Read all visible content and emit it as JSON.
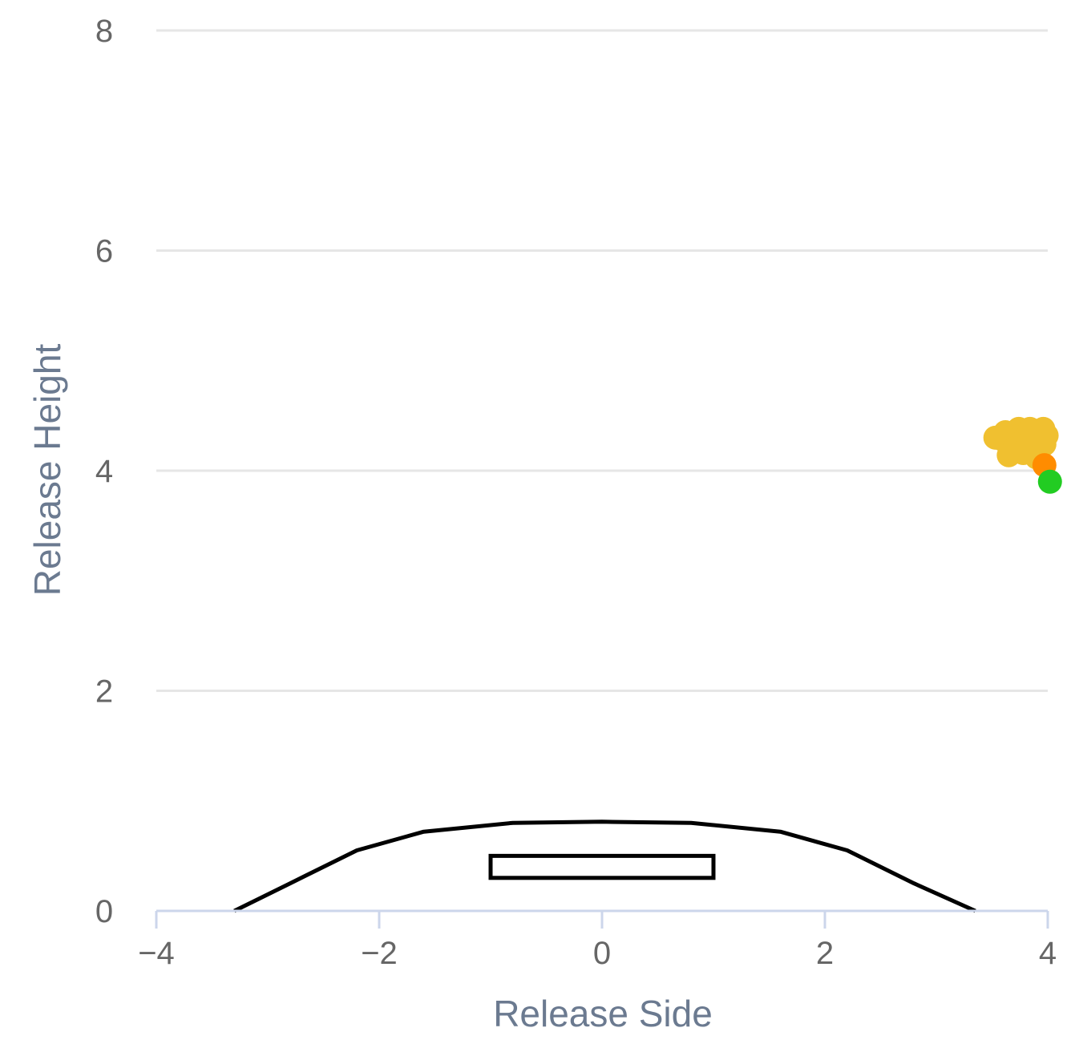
{
  "chart_data": {
    "type": "scatter",
    "xlabel": "Release Side",
    "ylabel": "Release Height",
    "xlim": [
      -4,
      4
    ],
    "ylim": [
      0,
      8
    ],
    "xticks": [
      -4,
      -2,
      0,
      2,
      4
    ],
    "yticks": [
      0,
      2,
      4,
      6,
      8
    ],
    "x_tick_labels": [
      "−4",
      "−2",
      "0",
      "2",
      "4"
    ],
    "y_tick_labels": [
      "0",
      "2",
      "4",
      "6",
      "8"
    ],
    "grid": "horizontal",
    "series": [
      {
        "color": "#f0c030",
        "points": [
          [
            3.53,
            4.3
          ],
          [
            3.6,
            4.28
          ],
          [
            3.62,
            4.35
          ],
          [
            3.67,
            4.28
          ],
          [
            3.7,
            4.32
          ],
          [
            3.74,
            4.38
          ],
          [
            3.78,
            4.34
          ],
          [
            3.8,
            4.3
          ],
          [
            3.84,
            4.38
          ],
          [
            3.88,
            4.28
          ],
          [
            3.92,
            4.32
          ],
          [
            3.96,
            4.38
          ],
          [
            3.99,
            4.32
          ],
          [
            3.87,
            4.2
          ],
          [
            3.93,
            4.22
          ],
          [
            3.65,
            4.14
          ],
          [
            3.7,
            4.2
          ],
          [
            3.78,
            4.16
          ],
          [
            3.82,
            4.24
          ],
          [
            3.9,
            4.12
          ],
          [
            3.97,
            4.24
          ]
        ]
      },
      {
        "color": "#ff8c00",
        "points": [
          [
            3.97,
            4.05
          ]
        ]
      },
      {
        "color": "#22cc22",
        "points": [
          [
            4.02,
            3.9
          ]
        ]
      }
    ],
    "annotations": [
      {
        "type": "mound",
        "color": "#000000"
      },
      {
        "type": "rubber",
        "color": "#000000",
        "x": [
          -1,
          1
        ],
        "y": [
          0.3,
          0.5
        ]
      }
    ]
  }
}
